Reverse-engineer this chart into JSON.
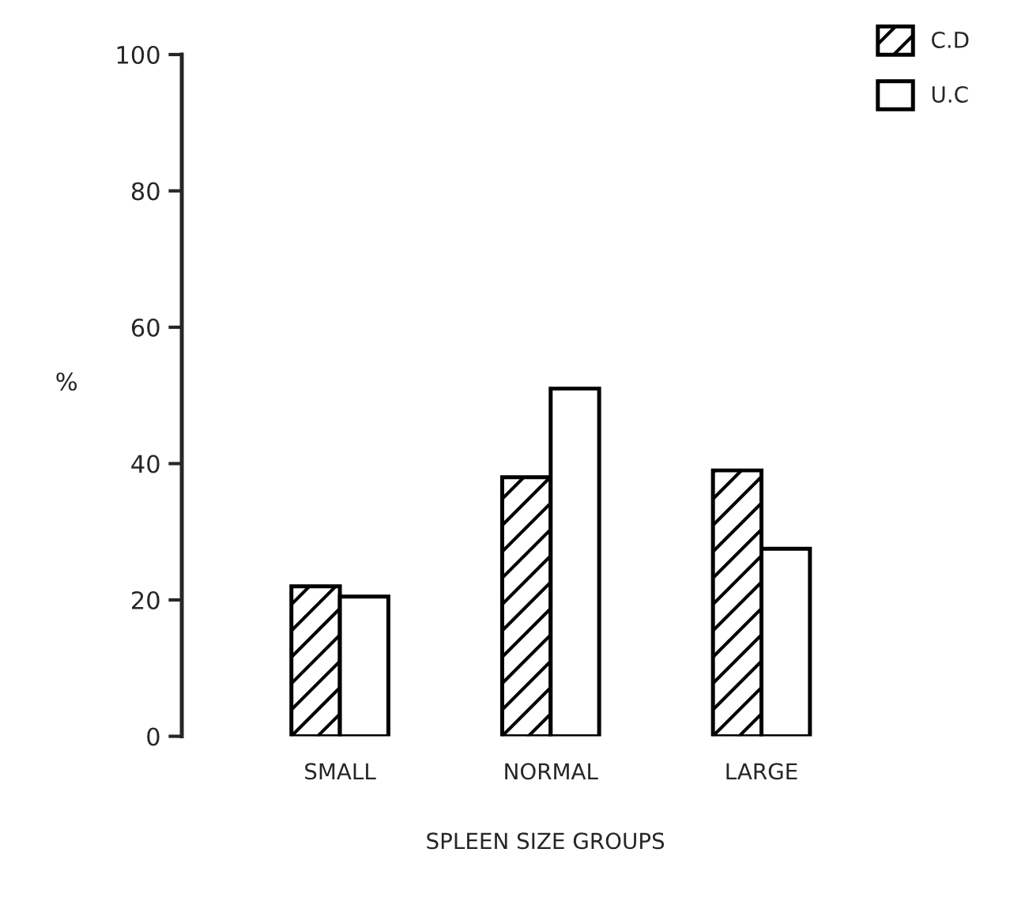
{
  "chart_data": {
    "type": "bar",
    "xlabel": "SPLEEN SIZE GROUPS",
    "ylabel": "%",
    "categories": [
      "SMALL",
      "NORMAL",
      "LARGE"
    ],
    "series": [
      {
        "name": "C.D",
        "color": "#000000",
        "values": [
          22,
          38,
          39
        ]
      },
      {
        "name": "U.C",
        "color": "#000000",
        "values": [
          20.5,
          51,
          27.5
        ]
      }
    ],
    "ylim": [
      0,
      100
    ],
    "yticks": [
      0,
      20,
      40,
      60,
      80,
      100
    ],
    "grid": false,
    "legend": "top right"
  }
}
